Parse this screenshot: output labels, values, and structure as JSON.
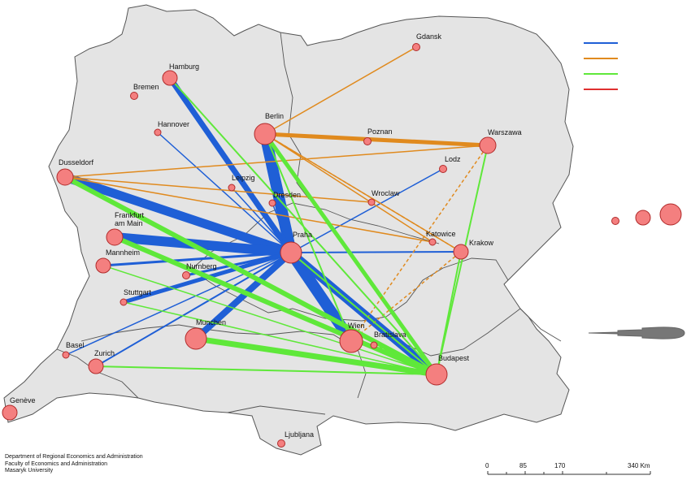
{
  "cities": [
    {
      "id": "gdansk",
      "name": "Gdansk"
    },
    {
      "id": "hamburg",
      "name": "Hamburg"
    },
    {
      "id": "bremen",
      "name": "Bremen"
    },
    {
      "id": "hannover",
      "name": "Hannover"
    },
    {
      "id": "berlin",
      "name": "Berlin"
    },
    {
      "id": "poznan",
      "name": "Poznan"
    },
    {
      "id": "warszawa",
      "name": "Warszawa"
    },
    {
      "id": "dusseldorf",
      "name": "Dusseldorf"
    },
    {
      "id": "lodz",
      "name": "Lodz"
    },
    {
      "id": "leipzig",
      "name": "Leipzig"
    },
    {
      "id": "dresden",
      "name": "Dresden"
    },
    {
      "id": "wroclaw",
      "name": "Wroclaw"
    },
    {
      "id": "frankfurt",
      "name": "Frankfurt\nam Main"
    },
    {
      "id": "praha",
      "name": "Praha"
    },
    {
      "id": "katowice",
      "name": "Katowice"
    },
    {
      "id": "krakow",
      "name": "Krakow"
    },
    {
      "id": "mannheim",
      "name": "Mannheim"
    },
    {
      "id": "nurnberg",
      "name": "Nurnberg"
    },
    {
      "id": "stuttgart",
      "name": "Stuttgart"
    },
    {
      "id": "munchen",
      "name": "Munchen"
    },
    {
      "id": "wien",
      "name": "Wien"
    },
    {
      "id": "bratislava",
      "name": "Bratislava"
    },
    {
      "id": "basel",
      "name": "Basel"
    },
    {
      "id": "zurich",
      "name": "Zurich"
    },
    {
      "id": "budapest",
      "name": "Budapest"
    },
    {
      "id": "geneve",
      "name": "Genève"
    },
    {
      "id": "ljubljana",
      "name": "Ljubljana"
    }
  ],
  "colors": {
    "blue": "#1f5fd6",
    "orange": "#e08a1e",
    "green": "#5fe83a",
    "red": "#e03030",
    "city_fill": "#f47f7f",
    "city_stroke": "#b02a2a",
    "land": "#e4e4e4",
    "border": "#555555"
  },
  "scale_bar": {
    "ticks": [
      "0",
      "85",
      "170",
      "340 Km"
    ]
  },
  "credits": [
    "Department of Regional Economics and Administration",
    "Faculty of Economics and Administration",
    "Masaryk University"
  ]
}
